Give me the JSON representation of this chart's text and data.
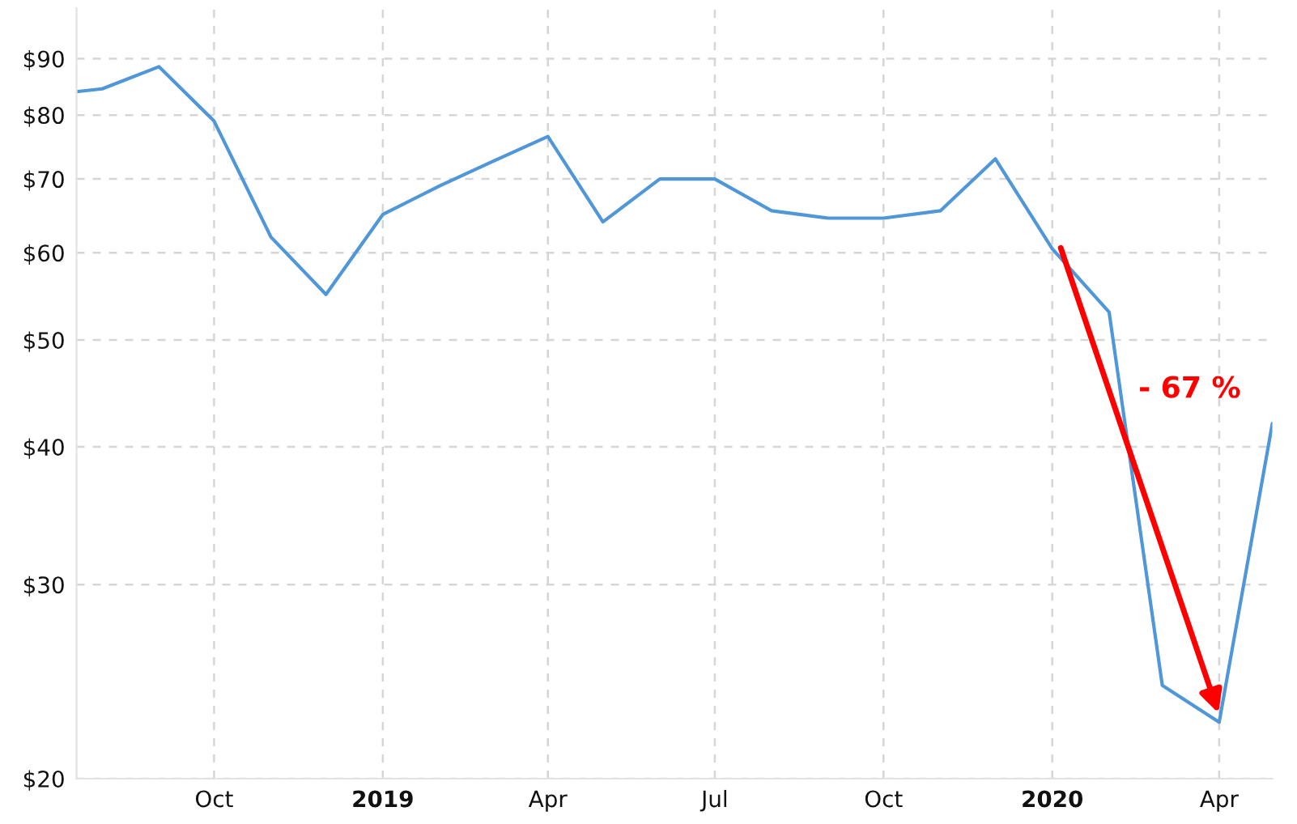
{
  "chart_data": {
    "type": "line",
    "x": [
      "2018-07-18",
      "2018-08-01",
      "2018-09-01",
      "2018-10-01",
      "2018-11-01",
      "2018-12-01",
      "2019-01-01",
      "2019-02-01",
      "2019-03-01",
      "2019-04-01",
      "2019-05-01",
      "2019-06-01",
      "2019-07-01",
      "2019-08-01",
      "2019-09-01",
      "2019-10-01",
      "2019-11-01",
      "2019-12-01",
      "2020-01-01",
      "2020-02-01",
      "2020-03-01",
      "2020-04-01",
      "2020-04-30"
    ],
    "series": [
      {
        "color": "#4f97d9",
        "values": [
          84,
          84.5,
          88.5,
          79,
          62,
          55,
          65,
          69,
          72.5,
          76.5,
          64,
          70,
          70,
          65.5,
          64.5,
          64.5,
          65.5,
          73,
          60.5,
          53,
          24.3,
          22.5,
          42
        ]
      }
    ],
    "log": true,
    "ylim": [
      20,
      100
    ],
    "yticks": [
      {
        "value": 20,
        "label": "$20"
      },
      {
        "value": 30,
        "label": "$30"
      },
      {
        "value": 40,
        "label": "$40"
      },
      {
        "value": 50,
        "label": "$50"
      },
      {
        "value": 60,
        "label": "$60"
      },
      {
        "value": 70,
        "label": "$70"
      },
      {
        "value": 80,
        "label": "$80"
      },
      {
        "value": 90,
        "label": "$90"
      }
    ],
    "xlim": [
      "2018-07-18",
      "2020-04-30"
    ],
    "xticks": [
      {
        "value": "2018-10-01",
        "label": "Oct"
      },
      {
        "value": "2019-01-01",
        "label": "2019"
      },
      {
        "value": "2019-04-01",
        "label": "Apr"
      },
      {
        "value": "2019-07-01",
        "label": "Jul"
      },
      {
        "value": "2019-10-01",
        "label": "Oct"
      },
      {
        "value": "2020-01-01",
        "label": "2020"
      },
      {
        "value": "2020-04-01",
        "label": "Apr"
      }
    ],
    "grid": true,
    "annotations": [
      "- 67 %"
    ]
  }
}
